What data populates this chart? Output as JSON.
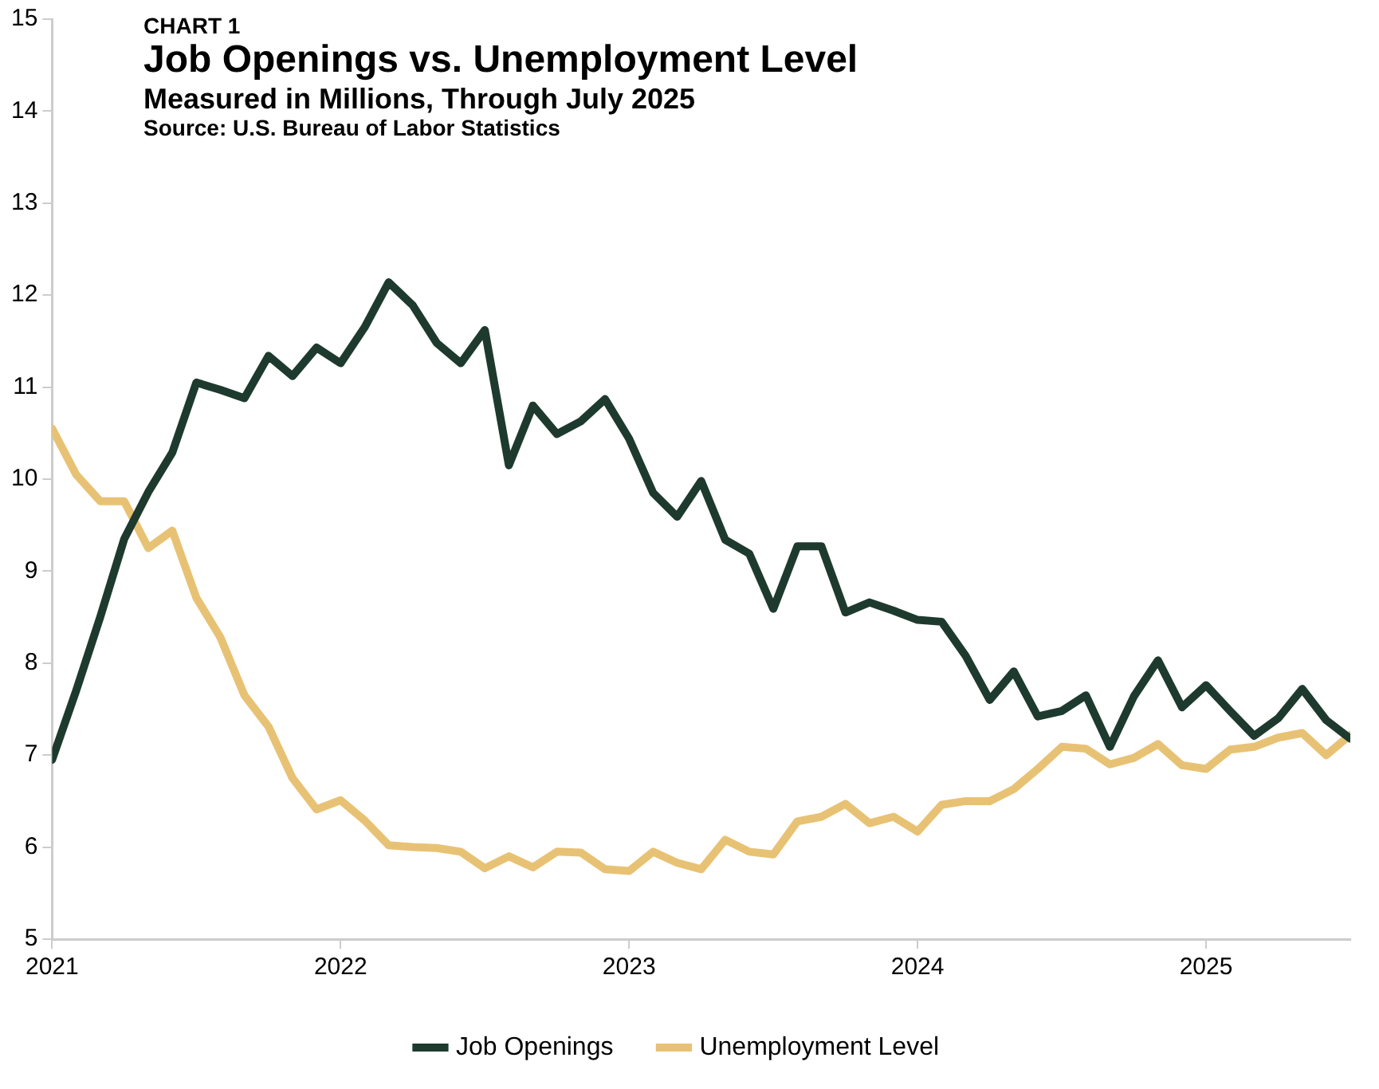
{
  "chart_data": {
    "type": "line",
    "title": "Job Openings vs. Unemployment Level",
    "subtitle": "Measured in Millions, Through July 2025",
    "annotations": [
      "CHART 1",
      "Source: U.S. Bureau of Labor Statistics"
    ],
    "x": [
      "2021-01",
      "2021-02",
      "2021-03",
      "2021-04",
      "2021-05",
      "2021-06",
      "2021-07",
      "2021-08",
      "2021-09",
      "2021-10",
      "2021-11",
      "2021-12",
      "2022-01",
      "2022-02",
      "2022-03",
      "2022-04",
      "2022-05",
      "2022-06",
      "2022-07",
      "2022-08",
      "2022-09",
      "2022-10",
      "2022-11",
      "2022-12",
      "2023-01",
      "2023-02",
      "2023-03",
      "2023-04",
      "2023-05",
      "2023-06",
      "2023-07",
      "2023-08",
      "2023-09",
      "2023-10",
      "2023-11",
      "2023-12",
      "2024-01",
      "2024-02",
      "2024-03",
      "2024-04",
      "2024-05",
      "2024-06",
      "2024-07",
      "2024-08",
      "2024-09",
      "2024-10",
      "2024-11",
      "2024-12",
      "2025-01",
      "2025-02",
      "2025-03",
      "2025-04",
      "2025-05",
      "2025-06",
      "2025-07"
    ],
    "series": [
      {
        "name": "Job Openings",
        "color": "#1e3a2f",
        "values": [
          6.95,
          7.7,
          8.5,
          9.35,
          9.86,
          10.29,
          11.05,
          10.97,
          10.88,
          11.34,
          11.12,
          11.43,
          11.26,
          11.65,
          12.14,
          11.89,
          11.48,
          11.26,
          11.62,
          10.15,
          10.8,
          10.49,
          10.63,
          10.87,
          10.44,
          9.85,
          9.59,
          9.98,
          9.34,
          9.19,
          8.59,
          9.27,
          9.27,
          8.55,
          8.66,
          8.57,
          8.47,
          8.45,
          8.08,
          7.6,
          7.91,
          7.42,
          7.48,
          7.65,
          7.09,
          7.64,
          8.03,
          7.52,
          7.76,
          7.48,
          7.21,
          7.4,
          7.72,
          7.38,
          7.18
        ]
      },
      {
        "name": "Unemployment Level",
        "color": "#e8c274",
        "values": [
          10.55,
          10.05,
          9.76,
          9.76,
          9.25,
          9.44,
          8.71,
          8.28,
          7.65,
          7.31,
          6.75,
          6.41,
          6.51,
          6.29,
          6.02,
          6.0,
          5.99,
          5.95,
          5.77,
          5.9,
          5.78,
          5.95,
          5.94,
          5.76,
          5.74,
          5.95,
          5.83,
          5.76,
          6.08,
          5.95,
          5.92,
          6.28,
          6.33,
          6.47,
          6.26,
          6.33,
          6.17,
          6.46,
          6.5,
          6.5,
          6.63,
          6.85,
          7.09,
          7.07,
          6.9,
          6.97,
          7.12,
          6.89,
          6.85,
          7.06,
          7.09,
          7.19,
          7.24,
          7.0,
          7.22
        ]
      }
    ],
    "xlim": [
      "2021-01",
      "2025-07"
    ],
    "xticks": [
      "2021",
      "2022",
      "2023",
      "2024",
      "2025"
    ],
    "ylim": [
      5,
      15
    ],
    "yticks": [
      5,
      6,
      7,
      8,
      9,
      10,
      11,
      12,
      13,
      14,
      15
    ],
    "grid": false,
    "legend": "bottom",
    "marker": "none",
    "line_style": "solid"
  }
}
